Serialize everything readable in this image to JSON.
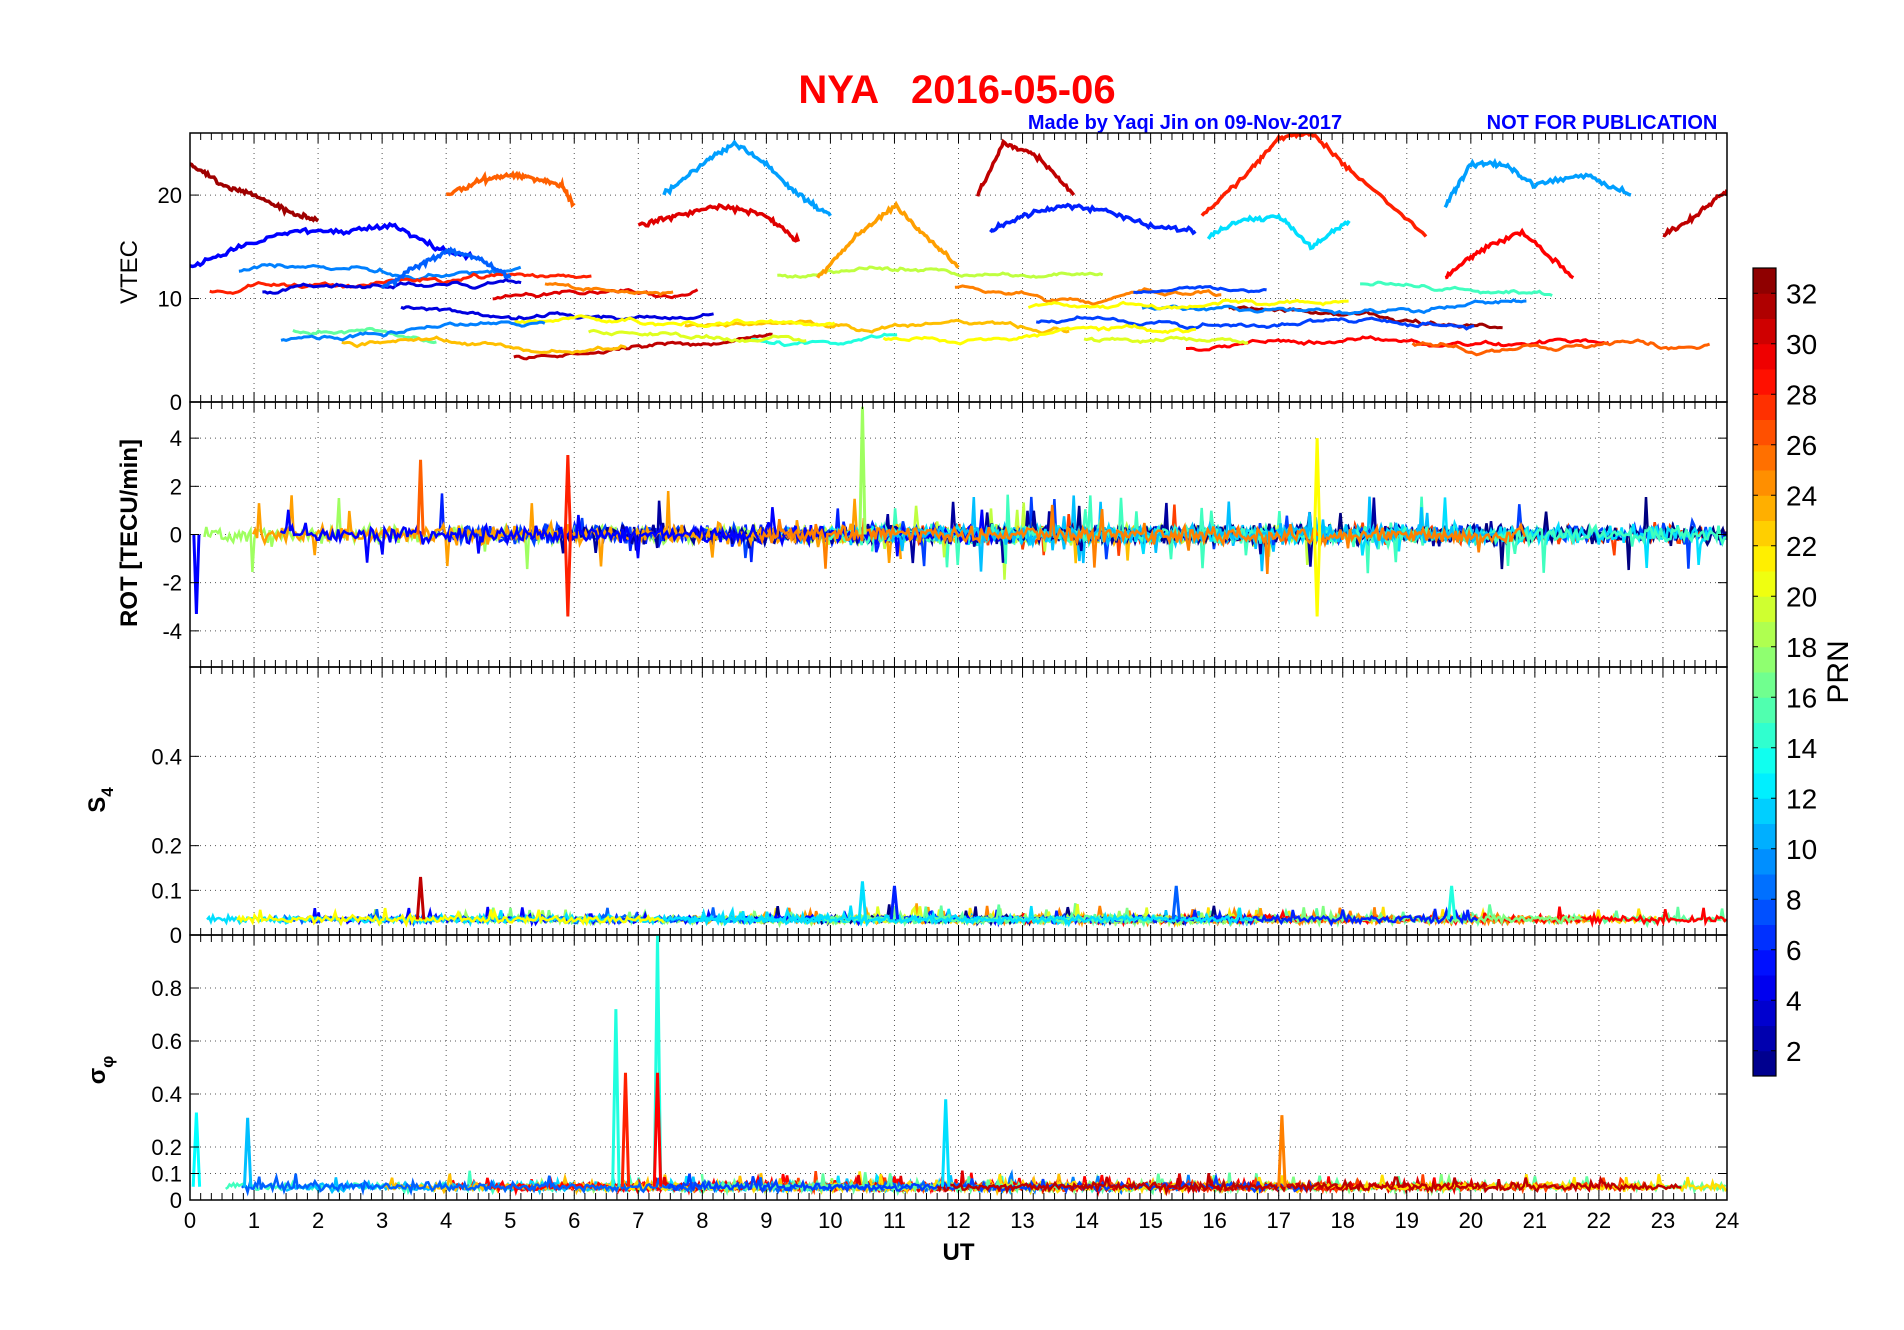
{
  "header": {
    "title": "NYA   2016-05-06",
    "credit": "Made by Yaqi Jin on 09-Nov-2017",
    "notice": "NOT FOR PUBLICATION",
    "title_color": "#ff0000",
    "credit_color": "#0000ff"
  },
  "chart_data": [
    {
      "type": "line",
      "panel": "vtec",
      "ylabel": "VTEC",
      "xlim": [
        0,
        24
      ],
      "ylim": [
        0,
        26
      ],
      "yticks": [
        0,
        10,
        20
      ],
      "grid": true,
      "series_note": "one trace per GPS PRN, colored by PRN",
      "series": [
        {
          "prn": 32,
          "x": [
            0,
            0.5,
            1,
            1.5,
            2
          ],
          "y": [
            23,
            21,
            20,
            18.5,
            17.5
          ]
        },
        {
          "prn": 31,
          "x": [
            12.3,
            12.7,
            13.2,
            13.8
          ],
          "y": [
            20,
            25,
            24,
            20
          ]
        },
        {
          "prn": 31,
          "x": [
            23,
            23.5,
            24
          ],
          "y": [
            16,
            18,
            20.5
          ]
        },
        {
          "prn": 28,
          "x": [
            15.8,
            16.5,
            17,
            17.5,
            18.2,
            19.3
          ],
          "y": [
            18,
            22,
            25.5,
            26,
            22,
            16
          ]
        },
        {
          "prn": 26,
          "x": [
            4,
            4.6,
            5,
            5.4,
            5.8,
            6
          ],
          "y": [
            20,
            21.5,
            22,
            21.5,
            21,
            19
          ]
        },
        {
          "prn": 10,
          "x": [
            7.4,
            8,
            8.5,
            9,
            9.5,
            10
          ],
          "y": [
            20,
            23,
            25,
            23,
            20,
            18
          ]
        },
        {
          "prn": 10,
          "x": [
            19.6,
            20,
            20.5,
            21,
            21.8,
            22.5
          ],
          "y": [
            19,
            23,
            23,
            21,
            22,
            20
          ]
        },
        {
          "prn": 5,
          "x": [
            0,
            0.8,
            1.6,
            2.4,
            3.2,
            3.8,
            4.4
          ],
          "y": [
            13,
            15,
            16.5,
            16.5,
            17,
            15,
            14
          ]
        },
        {
          "prn": 6,
          "x": [
            12.5,
            13,
            13.6,
            14.3,
            15,
            15.7
          ],
          "y": [
            16.5,
            18,
            19,
            18.5,
            17,
            16.5
          ]
        },
        {
          "prn": 30,
          "x": [
            7,
            7.6,
            8.3,
            9,
            9.5
          ],
          "y": [
            17,
            18,
            19,
            18,
            15.5
          ]
        },
        {
          "prn": 29,
          "x": [
            19.6,
            20.1,
            20.8,
            21.6
          ],
          "y": [
            12,
            14.5,
            16.5,
            12
          ]
        },
        {
          "prn": 24,
          "x": [
            9.8,
            10.4,
            11,
            11.5,
            12
          ],
          "y": [
            12,
            16,
            19,
            16,
            13
          ]
        },
        {
          "prn": 12,
          "x": [
            15.9,
            16.4,
            17,
            17.5,
            18.1
          ],
          "y": [
            16,
            17.5,
            18,
            15,
            17.5
          ]
        },
        {
          "prn": 8,
          "x": [
            3,
            3.5,
            4,
            4.5,
            5
          ],
          "y": [
            11,
            13,
            14.5,
            14,
            12
          ]
        }
      ]
    },
    {
      "type": "line",
      "panel": "rot",
      "ylabel": "ROT [TECU/min]",
      "xlim": [
        0,
        24
      ],
      "ylim": [
        -5.5,
        5.5
      ],
      "yticks": [
        -4,
        -2,
        0,
        2,
        4
      ],
      "grid": true,
      "peaks": [
        {
          "x": 10.5,
          "y": 5.3,
          "prn": 18
        },
        {
          "x": 17.6,
          "y": 4,
          "prn": 21
        },
        {
          "x": 17.6,
          "y": -3.4,
          "prn": 21
        },
        {
          "x": 5.9,
          "y": 3.3,
          "prn": 28
        },
        {
          "x": 5.9,
          "y": -3.4,
          "prn": 28
        },
        {
          "x": 3.6,
          "y": 3.1,
          "prn": 26
        },
        {
          "x": 0.1,
          "y": -3.3,
          "prn": 5
        }
      ]
    },
    {
      "type": "line",
      "panel": "s4",
      "ylabel": "S4",
      "ylabel_main": "S",
      "ylabel_sub": "4",
      "xlim": [
        0,
        24
      ],
      "ylim": [
        0,
        0.6
      ],
      "yticks": [
        0,
        0.1,
        0.2,
        0.4
      ],
      "ytick_labels": [
        "0",
        "0.1",
        "0.2",
        "0.4"
      ],
      "grid": true,
      "peaks": [
        {
          "x": 3.6,
          "y": 0.13,
          "prn": 31
        },
        {
          "x": 10.5,
          "y": 0.12,
          "prn": 12
        },
        {
          "x": 11,
          "y": 0.11,
          "prn": 6
        },
        {
          "x": 15.4,
          "y": 0.11,
          "prn": 8
        },
        {
          "x": 19.7,
          "y": 0.11,
          "prn": 14
        }
      ]
    },
    {
      "type": "line",
      "panel": "sigma_phi",
      "ylabel": "σφ",
      "ylabel_main": "σ",
      "ylabel_sub": "φ",
      "xlim": [
        0,
        24
      ],
      "ylim": [
        0,
        1
      ],
      "yticks": [
        0,
        0.1,
        0.2,
        0.4,
        0.6,
        0.8
      ],
      "ytick_labels": [
        "0",
        "0.1",
        "0.2",
        "0.4",
        "0.6",
        "0.8"
      ],
      "xlabel": "UT",
      "xticks": [
        0,
        1,
        2,
        3,
        4,
        5,
        6,
        7,
        8,
        9,
        10,
        11,
        12,
        13,
        14,
        15,
        16,
        17,
        18,
        19,
        20,
        21,
        22,
        23,
        24
      ],
      "xtick_labels": [
        "0",
        "1",
        "2",
        "3",
        "4",
        "5",
        "6",
        "7",
        "8",
        "9",
        "10",
        "11",
        "12",
        "13",
        "14",
        "15",
        "16",
        "17",
        "18",
        "19",
        "20",
        "21",
        "22",
        "23",
        "24"
      ],
      "grid": true,
      "peaks": [
        {
          "x": 7.3,
          "y": 1.0,
          "prn": 14
        },
        {
          "x": 6.65,
          "y": 0.72,
          "prn": 14
        },
        {
          "x": 6.8,
          "y": 0.48,
          "prn": 28
        },
        {
          "x": 7.3,
          "y": 0.48,
          "prn": 29
        },
        {
          "x": 17.05,
          "y": 0.32,
          "prn": 25
        },
        {
          "x": 11.8,
          "y": 0.38,
          "prn": 12
        },
        {
          "x": 0.1,
          "y": 0.33,
          "prn": 13
        },
        {
          "x": 0.9,
          "y": 0.31,
          "prn": 11
        }
      ]
    }
  ],
  "colorbar": {
    "label": "PRN",
    "range": [
      1,
      33
    ],
    "ticks": [
      2,
      4,
      6,
      8,
      10,
      12,
      14,
      16,
      18,
      20,
      22,
      24,
      26,
      28,
      30,
      32
    ],
    "tick_labels": [
      "2",
      "4",
      "6",
      "8",
      "10",
      "12",
      "14",
      "16",
      "18",
      "20",
      "22",
      "24",
      "26",
      "28",
      "30",
      "32"
    ],
    "colormap": "jet"
  }
}
